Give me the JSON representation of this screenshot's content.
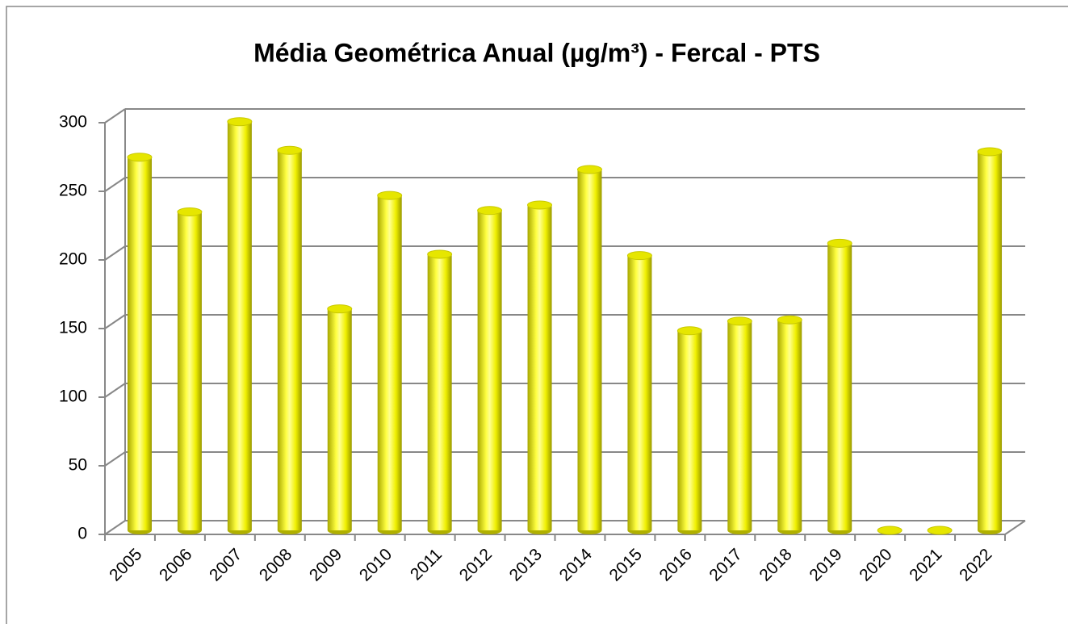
{
  "chart_data": {
    "type": "bar",
    "title": "Média Geométrica Anual (µg/m³) - Fercal - PTS",
    "categories": [
      "2005",
      "2006",
      "2007",
      "2008",
      "2009",
      "2010",
      "2011",
      "2012",
      "2013",
      "2014",
      "2015",
      "2016",
      "2017",
      "2018",
      "2019",
      "2020",
      "2021",
      "2022"
    ],
    "values": [
      273,
      233,
      299,
      278,
      162,
      245,
      202,
      234,
      238,
      264,
      201,
      146,
      153,
      154,
      210,
      0,
      0,
      277
    ],
    "color": "#ffff00",
    "ylim": [
      0,
      300
    ],
    "yticks": [
      0,
      50,
      100,
      150,
      200,
      250,
      300
    ],
    "grid": true
  }
}
